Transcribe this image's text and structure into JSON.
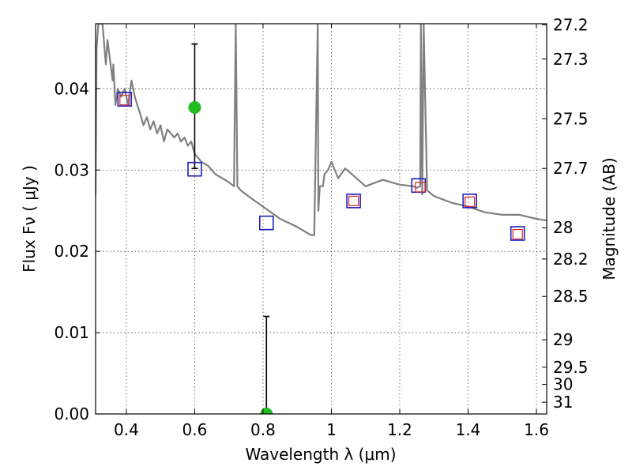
{
  "chart_data": {
    "type": "line",
    "title": "",
    "xlabel": "Wavelength  λ (μm)",
    "ylabel": "Flux  Fν  ( μJy )",
    "ylabel2": "Magnitude (AB)",
    "xlim": [
      0.31,
      1.63
    ],
    "ylim": [
      0.0,
      0.048
    ],
    "grid": true,
    "x_ticks": [
      0.4,
      0.6,
      0.8,
      1.0,
      1.2,
      1.4,
      1.6
    ],
    "x_tick_labels": [
      "0.4",
      "0.6",
      "0.8",
      "1",
      "1.2",
      "1.4",
      "1.6"
    ],
    "y_ticks": [
      0.0,
      0.01,
      0.02,
      0.03,
      0.04
    ],
    "y_tick_labels": [
      "0.00",
      "0.01",
      "0.02",
      "0.03",
      "0.04"
    ],
    "mag_tick_labels": [
      "27.2",
      "27.3",
      "27.5",
      "27.7",
      "28",
      "28.2",
      "28.5",
      "29",
      "29.5",
      "30",
      "31"
    ],
    "colors": {
      "spectrum": "#808080",
      "model_box": "#1f1fbf",
      "observed_box": "#d62728",
      "detection": "#22bb22",
      "errorbar": "#000000"
    },
    "series": [
      {
        "name": "model spectrum",
        "x": [
          0.31,
          0.313,
          0.318,
          0.322,
          0.33,
          0.34,
          0.345,
          0.36,
          0.362,
          0.368,
          0.375,
          0.385,
          0.395,
          0.405,
          0.415,
          0.425,
          0.432,
          0.44,
          0.45,
          0.46,
          0.47,
          0.48,
          0.49,
          0.5,
          0.51,
          0.52,
          0.53,
          0.54,
          0.55,
          0.56,
          0.57,
          0.58,
          0.59,
          0.6,
          0.62,
          0.64,
          0.66,
          0.68,
          0.7,
          0.715,
          0.72,
          0.725,
          0.735,
          0.75,
          0.8,
          0.85,
          0.9,
          0.94,
          0.95,
          0.96,
          0.962,
          0.966,
          0.97,
          0.975,
          0.98,
          0.99,
          1.0,
          1.02,
          1.04,
          1.06,
          1.1,
          1.15,
          1.2,
          1.24,
          1.25,
          1.26,
          1.262,
          1.266,
          1.27,
          1.28,
          1.3,
          1.35,
          1.4,
          1.45,
          1.5,
          1.55,
          1.6,
          1.63
        ],
        "y": [
          0.027,
          0.045,
          0.048,
          0.048,
          0.048,
          0.043,
          0.046,
          0.041,
          0.043,
          0.038,
          0.04,
          0.039,
          0.04,
          0.038,
          0.041,
          0.039,
          0.038,
          0.037,
          0.0355,
          0.0365,
          0.035,
          0.036,
          0.0345,
          0.0355,
          0.0335,
          0.035,
          0.0345,
          0.034,
          0.0345,
          0.0335,
          0.034,
          0.033,
          0.0335,
          0.032,
          0.031,
          0.0305,
          0.0295,
          0.029,
          0.0285,
          0.028,
          0.048,
          0.028,
          0.0275,
          0.027,
          0.0255,
          0.024,
          0.023,
          0.022,
          0.022,
          0.048,
          0.025,
          0.028,
          0.028,
          0.028,
          0.0295,
          0.03,
          0.031,
          0.029,
          0.0302,
          0.0295,
          0.028,
          0.0288,
          0.0282,
          0.028,
          0.0278,
          0.028,
          0.048,
          0.027,
          0.048,
          0.0275,
          0.0268,
          0.026,
          0.0255,
          0.0248,
          0.0245,
          0.0245,
          0.024,
          0.0238
        ]
      },
      {
        "name": "model photometry",
        "marker": "square",
        "x": [
          0.395,
          0.6,
          0.81,
          1.065,
          1.255,
          1.405,
          1.545
        ],
        "y": [
          0.0387,
          0.0301,
          0.0235,
          0.0262,
          0.0281,
          0.0262,
          0.0222
        ]
      },
      {
        "name": "observed photometry",
        "marker": "square",
        "x": [
          0.395,
          1.065,
          1.26,
          1.405,
          1.545
        ],
        "y": [
          0.0386,
          0.0262,
          0.0279,
          0.0261,
          0.0221
        ]
      },
      {
        "name": "detection",
        "marker": "circle",
        "x": [
          0.6,
          0.81
        ],
        "y": [
          0.0377,
          0.0
        ],
        "yerr_low": [
          0.0302,
          0.0
        ],
        "yerr_high": [
          0.0455,
          0.012
        ]
      }
    ]
  }
}
